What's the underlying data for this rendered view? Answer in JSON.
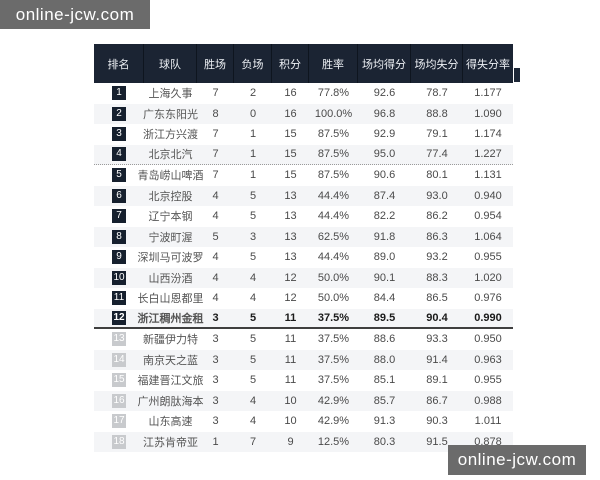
{
  "watermark": {
    "text": "online-jcw.com"
  },
  "colors": {
    "header_bg": "#1b2433",
    "badge_dark": "#16202e",
    "badge_light": "#c8cacd",
    "row_alt_bg": "#f4f5f7",
    "watermark_bg": "#6b6b6b"
  },
  "table": {
    "headers": [
      "排名",
      "球队",
      "胜场",
      "负场",
      "积分",
      "胜率",
      "场均得分",
      "场均失分",
      "得失分率"
    ],
    "rows": [
      {
        "rank": "1",
        "team": "上海久事",
        "wins": "7",
        "losses": "2",
        "points": "16",
        "win_rate": "77.8%",
        "avg_scored": "92.6",
        "avg_conceded": "78.7",
        "ratio": "1.177",
        "badge": "dark",
        "highlighted": false,
        "divider": "none"
      },
      {
        "rank": "2",
        "team": "广东东阳光",
        "wins": "8",
        "losses": "0",
        "points": "16",
        "win_rate": "100.0%",
        "avg_scored": "96.8",
        "avg_conceded": "88.8",
        "ratio": "1.090",
        "badge": "dark",
        "highlighted": false,
        "divider": "none"
      },
      {
        "rank": "3",
        "team": "浙江方兴渡",
        "wins": "7",
        "losses": "1",
        "points": "15",
        "win_rate": "87.5%",
        "avg_scored": "92.9",
        "avg_conceded": "79.1",
        "ratio": "1.174",
        "badge": "dark",
        "highlighted": false,
        "divider": "none"
      },
      {
        "rank": "4",
        "team": "北京北汽",
        "wins": "7",
        "losses": "1",
        "points": "15",
        "win_rate": "87.5%",
        "avg_scored": "95.0",
        "avg_conceded": "77.4",
        "ratio": "1.227",
        "badge": "dark",
        "highlighted": false,
        "divider": "dotted"
      },
      {
        "rank": "5",
        "team": "青岛崂山啤酒",
        "wins": "7",
        "losses": "1",
        "points": "15",
        "win_rate": "87.5%",
        "avg_scored": "90.6",
        "avg_conceded": "80.1",
        "ratio": "1.131",
        "badge": "dark",
        "highlighted": false,
        "divider": "none"
      },
      {
        "rank": "6",
        "team": "北京控股",
        "wins": "4",
        "losses": "5",
        "points": "13",
        "win_rate": "44.4%",
        "avg_scored": "87.4",
        "avg_conceded": "93.0",
        "ratio": "0.940",
        "badge": "dark",
        "highlighted": false,
        "divider": "none"
      },
      {
        "rank": "7",
        "team": "辽宁本钢",
        "wins": "4",
        "losses": "5",
        "points": "13",
        "win_rate": "44.4%",
        "avg_scored": "82.2",
        "avg_conceded": "86.2",
        "ratio": "0.954",
        "badge": "dark",
        "highlighted": false,
        "divider": "none"
      },
      {
        "rank": "8",
        "team": "宁波町渥",
        "wins": "5",
        "losses": "3",
        "points": "13",
        "win_rate": "62.5%",
        "avg_scored": "91.8",
        "avg_conceded": "86.3",
        "ratio": "1.064",
        "badge": "dark",
        "highlighted": false,
        "divider": "none"
      },
      {
        "rank": "9",
        "team": "深圳马可波罗",
        "wins": "4",
        "losses": "5",
        "points": "13",
        "win_rate": "44.4%",
        "avg_scored": "89.0",
        "avg_conceded": "93.2",
        "ratio": "0.955",
        "badge": "dark",
        "highlighted": false,
        "divider": "none"
      },
      {
        "rank": "10",
        "team": "山西汾酒",
        "wins": "4",
        "losses": "4",
        "points": "12",
        "win_rate": "50.0%",
        "avg_scored": "90.1",
        "avg_conceded": "88.3",
        "ratio": "1.020",
        "badge": "dark",
        "highlighted": false,
        "divider": "none"
      },
      {
        "rank": "11",
        "team": "长白山恩都里",
        "wins": "4",
        "losses": "4",
        "points": "12",
        "win_rate": "50.0%",
        "avg_scored": "84.4",
        "avg_conceded": "86.5",
        "ratio": "0.976",
        "badge": "dark",
        "highlighted": false,
        "divider": "none"
      },
      {
        "rank": "12",
        "team": "浙江稠州金租",
        "wins": "3",
        "losses": "5",
        "points": "11",
        "win_rate": "37.5%",
        "avg_scored": "89.5",
        "avg_conceded": "90.4",
        "ratio": "0.990",
        "badge": "dark",
        "highlighted": true,
        "divider": "solid"
      },
      {
        "rank": "13",
        "team": "新疆伊力特",
        "wins": "3",
        "losses": "5",
        "points": "11",
        "win_rate": "37.5%",
        "avg_scored": "88.6",
        "avg_conceded": "93.3",
        "ratio": "0.950",
        "badge": "light",
        "highlighted": false,
        "divider": "none"
      },
      {
        "rank": "14",
        "team": "南京天之蓝",
        "wins": "3",
        "losses": "5",
        "points": "11",
        "win_rate": "37.5%",
        "avg_scored": "88.0",
        "avg_conceded": "91.4",
        "ratio": "0.963",
        "badge": "light",
        "highlighted": false,
        "divider": "none"
      },
      {
        "rank": "15",
        "team": "福建晋江文旅",
        "wins": "3",
        "losses": "5",
        "points": "11",
        "win_rate": "37.5%",
        "avg_scored": "85.1",
        "avg_conceded": "89.1",
        "ratio": "0.955",
        "badge": "light",
        "highlighted": false,
        "divider": "none"
      },
      {
        "rank": "16",
        "team": "广州朗肽海本",
        "wins": "3",
        "losses": "4",
        "points": "10",
        "win_rate": "42.9%",
        "avg_scored": "85.7",
        "avg_conceded": "86.7",
        "ratio": "0.988",
        "badge": "light",
        "highlighted": false,
        "divider": "none"
      },
      {
        "rank": "17",
        "team": "山东高速",
        "wins": "3",
        "losses": "4",
        "points": "10",
        "win_rate": "42.9%",
        "avg_scored": "91.3",
        "avg_conceded": "90.3",
        "ratio": "1.011",
        "badge": "light",
        "highlighted": false,
        "divider": "none"
      },
      {
        "rank": "18",
        "team": "江苏肯帝亚",
        "wins": "1",
        "losses": "7",
        "points": "9",
        "win_rate": "12.5%",
        "avg_scored": "80.3",
        "avg_conceded": "91.5",
        "ratio": "0.878",
        "badge": "light",
        "highlighted": false,
        "divider": "none"
      }
    ]
  }
}
